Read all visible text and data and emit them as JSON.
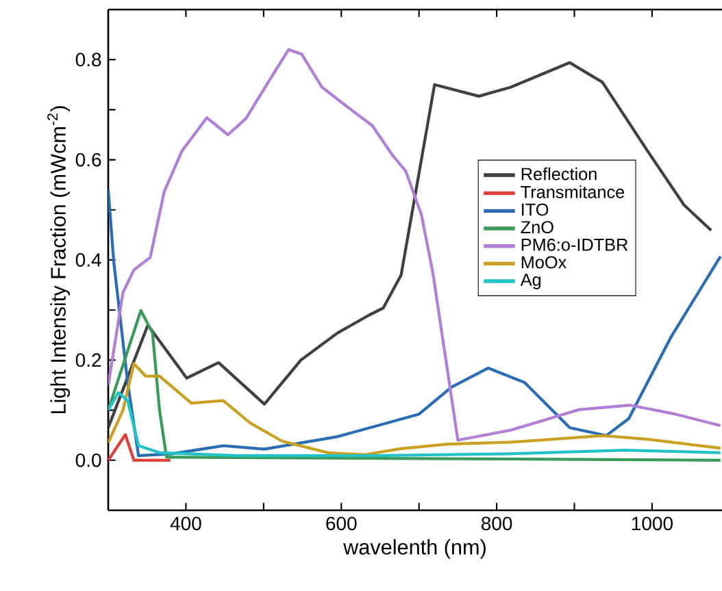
{
  "chart_data": {
    "type": "line",
    "xlabel": "wavelenth (nm)",
    "ylabel": "Light Intensity Fraction (mWcm$^{-2}$)",
    "xlim": [
      300,
      1090
    ],
    "ylim": [
      -0.1,
      0.9
    ],
    "xticks": [
      400,
      {
        "value": 500,
        "label": null
      },
      600,
      {
        "value": 700,
        "label": null
      },
      800,
      {
        "value": 900,
        "label": null
      },
      1000
    ],
    "yticks": [
      {
        "value": 0,
        "label": "0.0"
      },
      {
        "value": 0.1,
        "label": null
      },
      0.2,
      {
        "value": 0.3,
        "label": null
      },
      0.4,
      {
        "value": 0.5,
        "label": null
      },
      0.6,
      {
        "value": 0.7,
        "label": null
      },
      0.8
    ],
    "legend": "right",
    "marker": "none",
    "line_style": "solid",
    "series": [
      {
        "name": "Reflection",
        "color": "#404040",
        "x": [
          300,
          351,
          401,
          442,
          501,
          548,
          595,
          636,
          654,
          677,
          700,
          720,
          777,
          818,
          894,
          936,
          994,
          1041,
          1076
        ],
        "values": [
          0.065,
          0.27,
          0.164,
          0.195,
          0.112,
          0.2,
          0.254,
          0.29,
          0.304,
          0.37,
          0.573,
          0.75,
          0.727,
          0.745,
          0.794,
          0.755,
          0.618,
          0.51,
          0.459
        ]
      },
      {
        "name": "Transmitance",
        "color": "#e0403a",
        "x": [
          300,
          322,
          333,
          380
        ],
        "values": [
          0.0,
          0.051,
          0.0,
          0.0
        ]
      },
      {
        "name": "ITO",
        "color": "#2a6db5",
        "x": [
          300,
          307,
          325,
          339,
          383,
          448,
          501,
          595,
          700,
          742,
          789,
          836,
          894,
          941,
          970,
          1024,
          1088
        ],
        "values": [
          0.54,
          0.398,
          0.155,
          0.009,
          0.013,
          0.029,
          0.022,
          0.047,
          0.092,
          0.146,
          0.184,
          0.155,
          0.065,
          0.049,
          0.083,
          0.245,
          0.407
        ]
      },
      {
        "name": "ZnO",
        "color": "#3a9a5a",
        "x": [
          300,
          342,
          357,
          366,
          375,
          1088
        ],
        "values": [
          0.1,
          0.299,
          0.254,
          0.1,
          0.006,
          0.0
        ]
      },
      {
        "name": "PM6:o-IDTBR",
        "color": "#b07fd6",
        "x": [
          300,
          319,
          333,
          354,
          372,
          395,
          427,
          454,
          477,
          506,
          532,
          549,
          575,
          605,
          640,
          666,
          683,
          703,
          718,
          750,
          818,
          906,
          971,
          1030,
          1088
        ],
        "values": [
          0.15,
          0.335,
          0.38,
          0.405,
          0.536,
          0.618,
          0.684,
          0.65,
          0.682,
          0.755,
          0.82,
          0.811,
          0.745,
          0.709,
          0.668,
          0.609,
          0.577,
          0.491,
          0.373,
          0.04,
          0.06,
          0.101,
          0.11,
          0.092,
          0.069
        ]
      },
      {
        "name": "MoOx",
        "color": "#c9a020",
        "x": [
          300,
          319,
          333,
          348,
          366,
          407,
          448,
          483,
          524,
          583,
          630,
          677,
          736,
          818,
          936,
          994,
          1088
        ],
        "values": [
          0.035,
          0.1,
          0.193,
          0.168,
          0.168,
          0.114,
          0.119,
          0.074,
          0.038,
          0.015,
          0.011,
          0.023,
          0.032,
          0.036,
          0.049,
          0.042,
          0.024
        ]
      },
      {
        "name": "Ag",
        "color": "#22c3c8",
        "x": [
          300,
          313,
          325,
          339,
          366,
          466,
          642,
          818,
          965,
          1088
        ],
        "values": [
          0.1,
          0.135,
          0.119,
          0.029,
          0.015,
          0.009,
          0.009,
          0.013,
          0.02,
          0.015
        ]
      }
    ]
  }
}
